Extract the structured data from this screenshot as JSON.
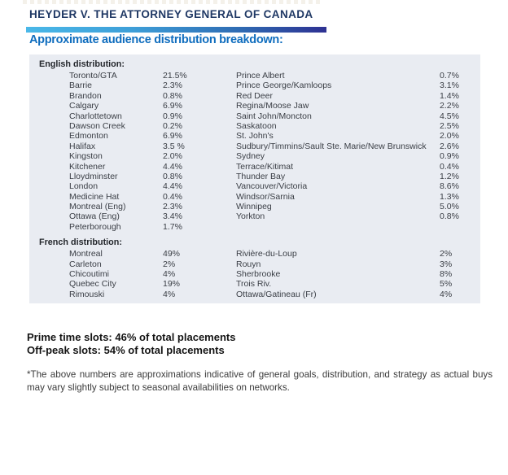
{
  "header": {
    "title": "HEYDER V. THE ATTORNEY GENERAL OF CANADA"
  },
  "section_heading": "Approximate audience distribution breakdown:",
  "panel": {
    "english": {
      "label": "English distribution:",
      "left": [
        {
          "market": "Toronto/GTA",
          "share": "21.5%"
        },
        {
          "market": "Barrie",
          "share": "2.3%"
        },
        {
          "market": "Brandon",
          "share": "0.8%"
        },
        {
          "market": "Calgary",
          "share": "6.9%"
        },
        {
          "market": "Charlottetown",
          "share": "0.9%"
        },
        {
          "market": "Dawson Creek",
          "share": "0.2%"
        },
        {
          "market": "Edmonton",
          "share": "6.9%"
        },
        {
          "market": "Halifax",
          "share": "3.5 %"
        },
        {
          "market": "Kingston",
          "share": "2.0%"
        },
        {
          "market": "Kitchener",
          "share": "4.4%"
        },
        {
          "market": "Lloydminster",
          "share": "0.8%"
        },
        {
          "market": "London",
          "share": "4.4%"
        },
        {
          "market": "Medicine Hat",
          "share": "0.4%"
        },
        {
          "market": "Montreal (Eng)",
          "share": "2.3%"
        },
        {
          "market": "Ottawa (Eng)",
          "share": "3.4%"
        },
        {
          "market": "Peterborough",
          "share": "1.7%"
        }
      ],
      "right": [
        {
          "market": "Prince Albert",
          "share": "0.7%"
        },
        {
          "market": "Prince George/Kamloops",
          "share": "3.1%"
        },
        {
          "market": "Red Deer",
          "share": "1.4%"
        },
        {
          "market": "Regina/Moose Jaw",
          "share": "2.2%"
        },
        {
          "market": "Saint John/Moncton",
          "share": "4.5%"
        },
        {
          "market": "Saskatoon",
          "share": "2.5%"
        },
        {
          "market": "St. John's",
          "share": "2.0%"
        },
        {
          "market": "Sudbury/Timmins/Sault Ste. Marie/New Brunswick",
          "share": "2.6%"
        },
        {
          "market": "Sydney",
          "share": "0.9%"
        },
        {
          "market": "Terrace/Kitimat",
          "share": "0.4%"
        },
        {
          "market": "Thunder Bay",
          "share": "1.2%"
        },
        {
          "market": "Vancouver/Victoria",
          "share": "8.6%"
        },
        {
          "market": "Windsor/Sarnia",
          "share": "1.3%"
        },
        {
          "market": "Winnipeg",
          "share": "5.0%"
        },
        {
          "market": "Yorkton",
          "share": "0.8%"
        }
      ]
    },
    "french": {
      "label": "French distribution:",
      "left": [
        {
          "market": "Montreal",
          "share": "49%"
        },
        {
          "market": "Carleton",
          "share": "2%"
        },
        {
          "market": "Chicoutimi",
          "share": "4%"
        },
        {
          "market": "Quebec City",
          "share": "19%"
        },
        {
          "market": "Rimouski",
          "share": "4%"
        }
      ],
      "right": [
        {
          "market": "Rivière-du-Loup",
          "share": "2%"
        },
        {
          "market": "Rouyn",
          "share": "3%"
        },
        {
          "market": "Sherbrooke",
          "share": "8%"
        },
        {
          "market": "Trois Riv.",
          "share": "5%"
        },
        {
          "market": "Ottawa/Gatineau (Fr)",
          "share": "4%"
        }
      ]
    }
  },
  "summary": {
    "prime_line": "Prime time slots: 46% of total placements",
    "offpeak_line": "Off-peak slots: 54% of total placements"
  },
  "footnote": "*The above numbers are approximations indicative of general goals, distribution, and strategy as actual buys may vary slightly subject to seasonal availabilities on networks.",
  "colors": {
    "title_navy": "#1F3864",
    "subtitle_blue": "#0F6DBE",
    "bar_gradient_start": "#4AB8E8",
    "bar_gradient_end": "#2E3192",
    "panel_background": "#E9ECF2",
    "body_text": "#3A3E45"
  }
}
